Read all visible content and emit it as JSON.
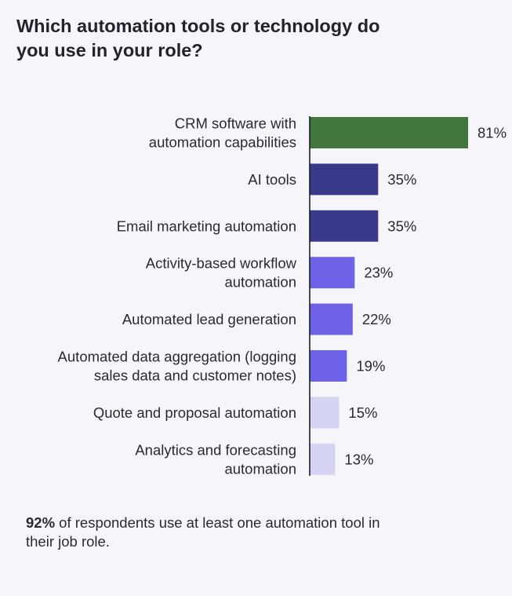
{
  "title": "Which automation tools or technology do you use in your role?",
  "chart_data": {
    "type": "bar",
    "orientation": "horizontal",
    "categories": [
      [
        "CRM software with",
        "automation capabilities"
      ],
      [
        "AI tools"
      ],
      [
        "Email marketing automation"
      ],
      [
        "Activity-based workflow",
        "automation"
      ],
      [
        "Automated lead generation"
      ],
      [
        "Automated data aggregation (logging",
        "sales data and customer notes)"
      ],
      [
        "Quote and proposal automation"
      ],
      [
        "Analytics and forecasting",
        "automation"
      ]
    ],
    "values": [
      81,
      35,
      35,
      23,
      22,
      19,
      15,
      13
    ],
    "value_labels": [
      "81%",
      "35%",
      "35%",
      "23%",
      "22%",
      "19%",
      "15%",
      "13%"
    ],
    "colors": [
      "#41763d",
      "#3b3a8a",
      "#3b3a8a",
      "#6e63e7",
      "#6e63e7",
      "#6e63e7",
      "#d4d3f1",
      "#d4d3f1"
    ],
    "xlim": [
      0,
      100
    ],
    "grid": false,
    "unit": "%"
  },
  "footnote": {
    "stat": "92%",
    "text": " of respondents use at least one automation tool in their job role."
  }
}
